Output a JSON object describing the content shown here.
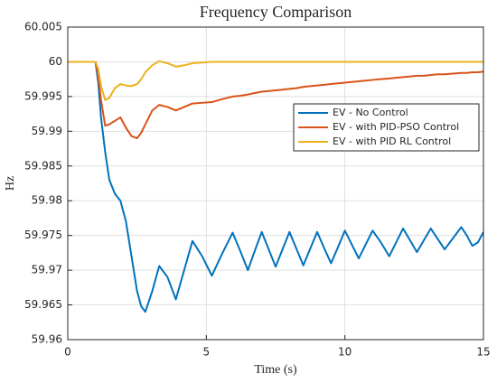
{
  "chart_data": {
    "type": "line",
    "title": "Frequency Comparison",
    "xlabel": "Time (s)",
    "ylabel": "Hz",
    "x": [
      0,
      1,
      1.1,
      1.2,
      1.35,
      1.5,
      1.7,
      1.9,
      2.1,
      2.3,
      2.5,
      2.65,
      2.8,
      3.05,
      3.3,
      3.6,
      3.9,
      4.2,
      4.5,
      4.85,
      5.2,
      5.55,
      5.95,
      6.2,
      6.5,
      6.75,
      7.0,
      7.25,
      7.5,
      7.75,
      8.0,
      8.25,
      8.5,
      8.75,
      9.0,
      9.25,
      9.5,
      9.75,
      10.0,
      10.25,
      10.5,
      10.75,
      11.0,
      11.3,
      11.6,
      11.85,
      12.1,
      12.35,
      12.6,
      12.85,
      13.1,
      13.35,
      13.6,
      13.9,
      14.2,
      14.4,
      14.6,
      14.8,
      15
    ],
    "series": [
      {
        "name": "EV - No Control",
        "color": "#0072bd",
        "values": [
          60,
          60,
          59.997,
          59.992,
          59.987,
          59.983,
          59.981,
          59.98,
          59.977,
          59.972,
          59.967,
          59.9648,
          59.964,
          59.967,
          59.9706,
          59.969,
          59.9658,
          59.97,
          59.9742,
          59.972,
          59.9692,
          59.9722,
          59.9754,
          59.973,
          59.97,
          59.9728,
          59.9755,
          59.973,
          59.9705,
          59.973,
          59.9755,
          59.9731,
          59.9707,
          59.9731,
          59.9755,
          59.9732,
          59.971,
          59.9733,
          59.9757,
          59.9737,
          59.9717,
          59.9737,
          59.9757,
          59.974,
          59.972,
          59.974,
          59.976,
          59.9743,
          59.9726,
          59.9743,
          59.976,
          59.9745,
          59.973,
          59.9746,
          59.9762,
          59.975,
          59.9735,
          59.974,
          59.9755
        ]
      },
      {
        "name": "EV - with PID-PSO Control",
        "color": "#d95319",
        "values": [
          60,
          60,
          59.998,
          59.9945,
          59.9908,
          59.991,
          59.9915,
          59.992,
          59.9905,
          59.9893,
          59.989,
          59.9898,
          59.991,
          59.993,
          59.9938,
          59.9935,
          59.993,
          59.9935,
          59.994,
          59.9941,
          59.9942,
          59.9946,
          59.995,
          59.9951,
          59.9953,
          59.9955,
          59.9957,
          59.9958,
          59.9959,
          59.996,
          59.9961,
          59.9962,
          59.9964,
          59.9965,
          59.9966,
          59.9967,
          59.9968,
          59.9969,
          59.997,
          59.9971,
          59.9972,
          59.9973,
          59.9974,
          59.9975,
          59.9976,
          59.9977,
          59.9978,
          59.9979,
          59.998,
          59.998,
          59.9981,
          59.9982,
          59.9982,
          59.9983,
          59.9984,
          59.9984,
          59.9985,
          59.9985,
          59.9986
        ]
      },
      {
        "name": "EV - with PID RL Control",
        "color": "#edb120",
        "values": [
          60,
          60,
          59.999,
          59.9965,
          59.9945,
          59.9948,
          59.9962,
          59.9968,
          59.9966,
          59.9965,
          59.9968,
          59.9975,
          59.9985,
          59.9995,
          60.0001,
          59.9998,
          59.9993,
          59.9995,
          59.9998,
          59.9999,
          60,
          60,
          60,
          60,
          60,
          60,
          60,
          60,
          60,
          60,
          60,
          60,
          60,
          60,
          60,
          60,
          60,
          60,
          60,
          60,
          60,
          60,
          60,
          60,
          60,
          60,
          60,
          60,
          60,
          60,
          60,
          60,
          60,
          60,
          60,
          60,
          60,
          60,
          60
        ]
      }
    ],
    "xlim": [
      0,
      15
    ],
    "xticks": [
      0,
      5,
      10,
      15
    ],
    "ylim": [
      59.96,
      60.005
    ],
    "yticks": [
      59.96,
      59.965,
      59.97,
      59.975,
      59.98,
      59.985,
      59.99,
      59.995,
      60,
      60.005
    ],
    "grid": true,
    "legend": "right"
  }
}
